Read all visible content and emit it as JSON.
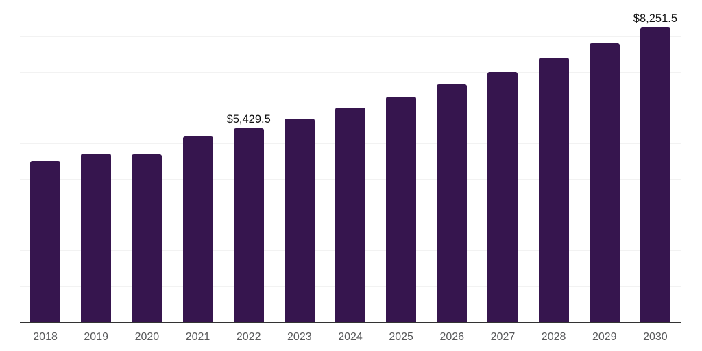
{
  "chart_data": {
    "type": "bar",
    "title": "",
    "xlabel": "",
    "ylabel": "",
    "categories": [
      "2018",
      "2019",
      "2020",
      "2021",
      "2022",
      "2023",
      "2024",
      "2025",
      "2026",
      "2027",
      "2028",
      "2029",
      "2030"
    ],
    "values": [
      4505,
      4710,
      4685,
      5185,
      5429.5,
      5700,
      6000,
      6305,
      6660,
      7000,
      7400,
      7810,
      8251.5
    ],
    "labeled_points": [
      {
        "category": "2022",
        "label": "$5,429.5"
      },
      {
        "category": "2030",
        "label": "$8,251.5"
      }
    ],
    "ylim": [
      0,
      9000
    ],
    "gridline_interval": 1000,
    "grid": "horizontal",
    "y_tick_labels_visible": false,
    "legend": "none"
  },
  "style": {
    "bar_color": "#36154e",
    "gridline_color": "#f2f2f2",
    "axis_line_color": "#333333",
    "tick_label_color": "#58595b",
    "data_label_color": "#111111",
    "background_color": "#ffffff"
  }
}
